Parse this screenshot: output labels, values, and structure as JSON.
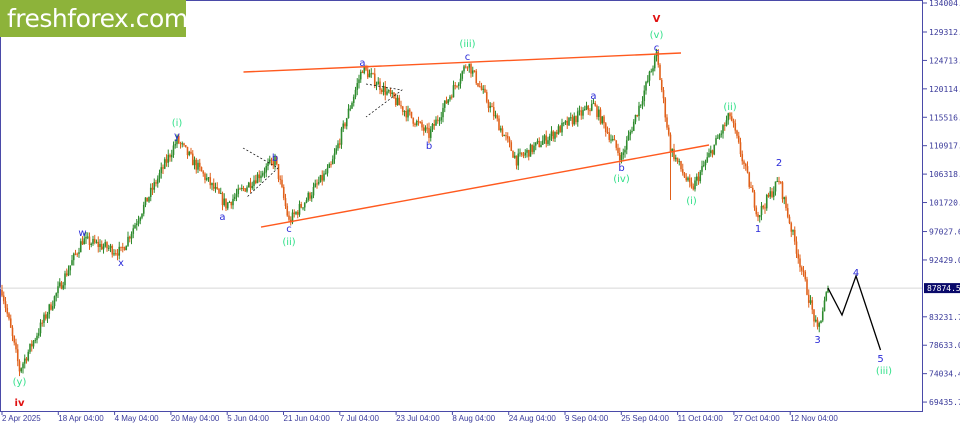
{
  "logo": {
    "text": "freshforex.com",
    "color": "#8db33a"
  },
  "chart_data": {
    "type": "candlestick",
    "price_axis": {
      "range": [
        69435.75,
        134004.55
      ],
      "ticks": [
        "134004.55",
        "129312.05",
        "124713.40",
        "120114.75",
        "115516.10",
        "110917.45",
        "106318.80",
        "101720.15",
        "97027.65",
        "92429.00",
        "83231.70",
        "78633.05",
        "74034.40",
        "69435.75"
      ]
    },
    "current_price": {
      "value": 87874.53,
      "label": "87874.53"
    },
    "time_axis": {
      "start": "2025-04-02",
      "ticks": [
        "2 Apr 2025",
        "18 Apr 04:00",
        "4 May 04:00",
        "20 May 04:00",
        "5 Jun 04:00",
        "21 Jun 04:00",
        "7 Jul 04:00",
        "23 Jul 04:00",
        "8 Aug 04:00",
        "24 Aug 04:00",
        "9 Sep 04:00",
        "25 Sep 04:00",
        "11 Oct 04:00",
        "27 Oct 04:00",
        "12 Nov 04:00"
      ]
    },
    "price_path": [
      [
        "2025-04-02",
        87568
      ],
      [
        "2025-04-07",
        74624
      ],
      [
        "2025-04-25",
        95658
      ],
      [
        "2025-05-06",
        93716
      ],
      [
        "2025-05-22",
        111838
      ],
      [
        "2025-06-05",
        101321
      ],
      [
        "2025-06-19",
        108602
      ],
      [
        "2025-06-23",
        98571
      ],
      [
        "2025-07-05",
        107500
      ],
      [
        "2025-07-14",
        123488
      ],
      [
        "2025-08-02",
        112647
      ],
      [
        "2025-08-13",
        124459
      ],
      [
        "2025-08-27",
        108602
      ],
      [
        "2025-09-18",
        117501
      ],
      [
        "2025-09-26",
        108926
      ],
      [
        "2025-10-06",
        125591
      ],
      [
        "2025-10-10",
        110500
      ],
      [
        "2025-10-16",
        103748
      ],
      [
        "2025-10-27",
        115883
      ],
      [
        "2025-11-04",
        99703
      ],
      [
        "2025-11-10",
        105366
      ],
      [
        "2025-11-21",
        80773
      ],
      [
        "2025-11-24",
        87874.53
      ]
    ],
    "spike_low": [
      "2025-10-10",
      102130
    ],
    "colors": {
      "bull": "#2e8b2e",
      "bear": "#e0601a",
      "trendline": "#ff5a1f",
      "projection": "#000000",
      "wave_blue": "#2a2ad8",
      "wave_green": "#33e08a",
      "wave_red": "#e01010"
    },
    "trendlines": [
      [
        [
          "2025-06-10",
          122840
        ],
        [
          "2025-10-13",
          125913
        ]
      ],
      [
        [
          "2025-06-15",
          97761
        ],
        [
          "2025-10-21",
          111029
        ]
      ]
    ],
    "projection": [
      [
        "2025-11-24",
        87874.53
      ],
      [
        "2025-11-28",
        83523
      ],
      [
        "2025-12-02",
        89834
      ],
      [
        "2025-12-09",
        77860
      ]
    ],
    "wave_labels": [
      {
        "text": "(y)",
        "date": "2025-04-07",
        "price": 72844,
        "color": "green"
      },
      {
        "text": "iv",
        "date": "2025-04-07",
        "price": 69446,
        "color": "red"
      },
      {
        "text": "w",
        "date": "2025-04-25",
        "price": 96952,
        "color": "blue"
      },
      {
        "text": "x",
        "date": "2025-05-06",
        "price": 92098,
        "color": "blue"
      },
      {
        "text": "(i)",
        "date": "2025-05-22",
        "price": 114750,
        "color": "green"
      },
      {
        "text": "y",
        "date": "2025-05-22",
        "price": 112647,
        "color": "blue"
      },
      {
        "text": "a",
        "date": "2025-06-04",
        "price": 99541,
        "color": "blue"
      },
      {
        "text": "b",
        "date": "2025-06-19",
        "price": 109087,
        "color": "blue"
      },
      {
        "text": "c",
        "date": "2025-06-23",
        "price": 97600,
        "color": "blue"
      },
      {
        "text": "(ii)",
        "date": "2025-06-23",
        "price": 95496,
        "color": "green"
      },
      {
        "text": "a",
        "date": "2025-07-14",
        "price": 124459,
        "color": "blue"
      },
      {
        "text": "b",
        "date": "2025-08-02",
        "price": 111029,
        "color": "blue"
      },
      {
        "text": "(iii)",
        "date": "2025-08-13",
        "price": 127532,
        "color": "green"
      },
      {
        "text": "c",
        "date": "2025-08-13",
        "price": 125429,
        "color": "blue"
      },
      {
        "text": "a",
        "date": "2025-09-18",
        "price": 119118,
        "color": "blue"
      },
      {
        "text": "b",
        "date": "2025-09-26",
        "price": 107469,
        "color": "blue"
      },
      {
        "text": "(iv)",
        "date": "2025-09-26",
        "price": 105689,
        "color": "green"
      },
      {
        "text": "V",
        "date": "2025-10-06",
        "price": 131577,
        "color": "red"
      },
      {
        "text": "(v)",
        "date": "2025-10-06",
        "price": 128988,
        "color": "green"
      },
      {
        "text": "c",
        "date": "2025-10-06",
        "price": 126885,
        "color": "blue"
      },
      {
        "text": "(i)",
        "date": "2025-10-16",
        "price": 102130,
        "color": "green"
      },
      {
        "text": "(ii)",
        "date": "2025-10-27",
        "price": 117339,
        "color": "green"
      },
      {
        "text": "1",
        "date": "2025-11-04",
        "price": 97600,
        "color": "blue"
      },
      {
        "text": "2",
        "date": "2025-11-10",
        "price": 108278,
        "color": "blue"
      },
      {
        "text": "3",
        "date": "2025-11-21",
        "price": 79639,
        "color": "blue"
      },
      {
        "text": "4",
        "date": "2025-12-02",
        "price": 90480,
        "color": "blue"
      },
      {
        "text": "5",
        "date": "2025-12-09",
        "price": 76565,
        "color": "blue"
      },
      {
        "text": "(iii)",
        "date": "2025-12-10",
        "price": 74624,
        "color": "green"
      }
    ]
  }
}
